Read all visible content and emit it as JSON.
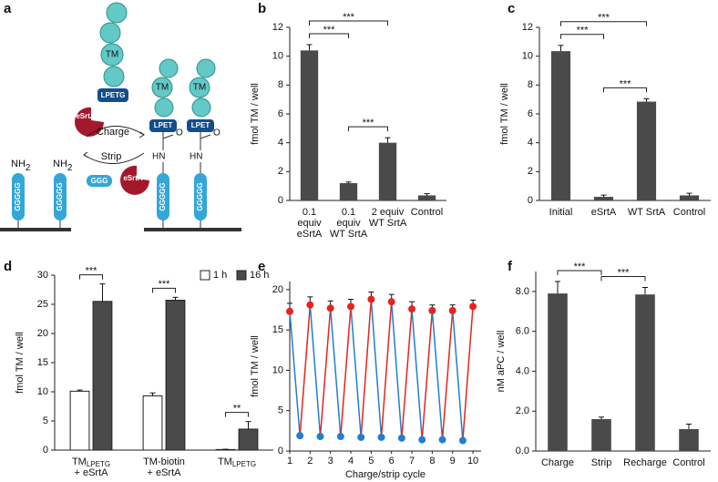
{
  "diagram": {
    "panel": "a",
    "labels": {
      "tm": "TM",
      "lpetg": "LPETG",
      "esrta": "eSrtA",
      "charge": "Charge",
      "strip": "Strip",
      "lpet": "LPET",
      "hn": "HN",
      "o": "O",
      "nh": "NH",
      "nh_sub": "2",
      "g5": "GGGGG",
      "g3": "GGG"
    }
  },
  "chart_data": [
    {
      "type": "bar",
      "panel": "b",
      "ylabel": "fmol TM / well",
      "categories": [
        [
          "0.1",
          "equiv",
          "eSrtA"
        ],
        [
          "0.1",
          "equiv",
          "WT SrtA"
        ],
        [
          "2 equiv",
          "WT SrtA"
        ],
        [
          "Control"
        ]
      ],
      "values": [
        10.4,
        1.2,
        4.0,
        0.35
      ],
      "errors": [
        0.4,
        0.08,
        0.35,
        0.12
      ],
      "color": "#4a4a4a",
      "ylim": [
        0,
        12
      ],
      "yticks": [
        0,
        2,
        4,
        6,
        8,
        10,
        12
      ],
      "brackets": [
        {
          "from": 0,
          "to": 1,
          "label": "***"
        },
        {
          "from": 0,
          "to": 2,
          "label": "***"
        },
        {
          "from": 1,
          "to": 2,
          "label": "***"
        }
      ]
    },
    {
      "type": "bar",
      "panel": "c",
      "ylabel": "fmol TM / well",
      "categories": [
        [
          "Initial"
        ],
        [
          "eSrtA"
        ],
        [
          "WT SrtA"
        ],
        [
          "Control"
        ]
      ],
      "values": [
        10.35,
        0.25,
        6.85,
        0.35
      ],
      "errors": [
        0.4,
        0.12,
        0.2,
        0.15
      ],
      "color": "#4a4a4a",
      "ylim": [
        0,
        12
      ],
      "yticks": [
        0,
        2,
        4,
        6,
        8,
        10,
        12
      ],
      "brackets": [
        {
          "from": 0,
          "to": 1,
          "label": "***"
        },
        {
          "from": 0,
          "to": 2,
          "label": "***"
        },
        {
          "from": 1,
          "to": 2,
          "label": "***"
        }
      ]
    },
    {
      "type": "grouped-bar",
      "panel": "d",
      "ylabel": "fmol TM / well",
      "categories": [
        [
          {
            "base": "TM",
            "sub": "LPETG"
          },
          "+ eSrtA"
        ],
        [
          "TM-biotin",
          "+ eSrtA"
        ],
        [
          {
            "base": "TM",
            "sub": "LPETG"
          }
        ]
      ],
      "series": [
        {
          "name": "1 h",
          "color": "#ffffff",
          "values": [
            10.1,
            9.3,
            0.1
          ],
          "errors": [
            0.2,
            0.5,
            0.05
          ]
        },
        {
          "name": "16 h",
          "color": "#4a4a4a",
          "values": [
            25.5,
            25.7,
            3.6
          ],
          "errors": [
            3.0,
            0.5,
            1.3
          ]
        }
      ],
      "ylim": [
        0,
        30
      ],
      "yticks": [
        0,
        5,
        10,
        15,
        20,
        25,
        30
      ],
      "legend": "upper right",
      "brackets": [
        {
          "group": 0,
          "label": "***"
        },
        {
          "group": 1,
          "label": "***"
        },
        {
          "group": 2,
          "label": "**"
        }
      ]
    },
    {
      "type": "zigzag",
      "panel": "e",
      "ylabel": "fmol TM / well",
      "xlabel": "Charge/strip cycle",
      "series": [
        {
          "color": "#e8231e",
          "x": [
            1,
            2,
            3,
            4,
            5,
            6,
            7,
            8,
            9,
            10
          ],
          "values": [
            17.3,
            18.1,
            17.7,
            17.9,
            18.8,
            18.5,
            17.6,
            17.4,
            17.4,
            17.9
          ],
          "errors": [
            1.0,
            1.0,
            0.9,
            0.9,
            0.9,
            0.9,
            0.9,
            0.7,
            0.7,
            0.8
          ]
        },
        {
          "color": "#1f7fd0",
          "x": [
            1.5,
            2.5,
            3.5,
            4.5,
            5.5,
            6.5,
            7.5,
            8.5,
            9.5
          ],
          "values": [
            1.9,
            1.8,
            1.8,
            1.7,
            1.7,
            1.6,
            1.4,
            1.4,
            1.3
          ]
        }
      ],
      "xlim": [
        1,
        10.4
      ],
      "xticks": [
        1,
        2,
        3,
        4,
        5,
        6,
        7,
        8,
        9,
        10
      ],
      "ylim": [
        0,
        21
      ],
      "yticks": [
        0,
        5,
        10,
        15,
        20
      ]
    },
    {
      "type": "bar",
      "panel": "f",
      "ylabel": "nM aPC / well",
      "categories": [
        [
          "Charge"
        ],
        [
          "Strip"
        ],
        [
          "Recharge"
        ],
        [
          "Control"
        ]
      ],
      "values": [
        7.9,
        1.6,
        7.85,
        1.1
      ],
      "errors": [
        0.6,
        0.1,
        0.35,
        0.25
      ],
      "color": "#4a4a4a",
      "ylim": [
        0,
        9
      ],
      "yticks": [
        {
          "value": 0,
          "label": "0.0"
        },
        {
          "value": 2,
          "label": "2.0"
        },
        {
          "value": 4,
          "label": "4.0"
        },
        {
          "value": 6,
          "label": "6.0"
        },
        {
          "value": 8,
          "label": "8.0"
        }
      ],
      "brackets": [
        {
          "from": 0,
          "to": 1,
          "label": "***"
        },
        {
          "from": 1,
          "to": 2,
          "label": "***"
        }
      ]
    }
  ]
}
